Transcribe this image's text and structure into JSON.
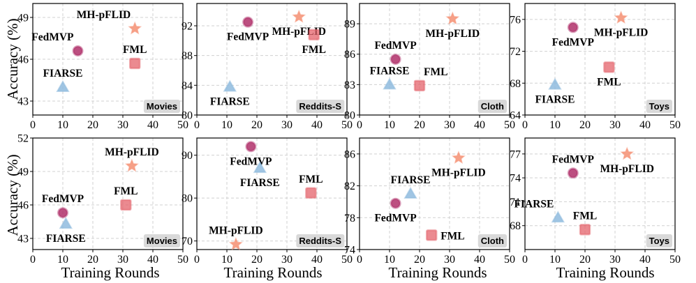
{
  "figure": {
    "ylabel": "Accuracy (%)",
    "xlabel": "Training Rounds"
  },
  "colors": {
    "FedMVP": "#b0306a",
    "MH-pFLID": "#f5967a",
    "FML": "#e4636b",
    "FIARSE": "#8fbbde",
    "dataset_box": "#d9d9d9"
  },
  "markers": {
    "FedMVP": "circle",
    "MH-pFLID": "star",
    "FML": "square",
    "FIARSE": "triangle"
  },
  "chart_data": [
    {
      "type": "scatter",
      "dataset": "Movies",
      "row": 0,
      "col": 0,
      "xlim": [
        0,
        50
      ],
      "ylim": [
        42,
        50
      ],
      "xticks": [
        "0",
        "10",
        "20",
        "30",
        "40",
        "50"
      ],
      "yticks": [
        {
          "v": 43,
          "t": "43"
        },
        {
          "v": 46,
          "t": "46"
        },
        {
          "v": 49,
          "t": "49"
        }
      ],
      "points": [
        {
          "name": "FedMVP",
          "x": 15,
          "y": 46.6,
          "label_pos": "above-left"
        },
        {
          "name": "MH-pFLID",
          "x": 34,
          "y": 48.2,
          "label_pos": "above-left"
        },
        {
          "name": "FML",
          "x": 34,
          "y": 45.7,
          "label_pos": "above"
        },
        {
          "name": "FIARSE",
          "x": 10,
          "y": 44.0,
          "label_pos": "above"
        }
      ]
    },
    {
      "type": "scatter",
      "dataset": "Reddits-S",
      "row": 0,
      "col": 1,
      "xlim": [
        0,
        50
      ],
      "ylim": [
        80,
        95
      ],
      "xticks": [
        "0",
        "10",
        "20",
        "30",
        "40",
        "50"
      ],
      "yticks": [
        {
          "v": 80,
          "t": "80"
        },
        {
          "v": 84,
          "t": "84"
        },
        {
          "v": 88,
          "t": "88"
        },
        {
          "v": 92,
          "t": "92"
        }
      ],
      "points": [
        {
          "name": "FedMVP",
          "x": 17,
          "y": 92.5,
          "label_pos": "below"
        },
        {
          "name": "MH-pFLID",
          "x": 34,
          "y": 93.2,
          "label_pos": "below"
        },
        {
          "name": "FML",
          "x": 39,
          "y": 90.8,
          "label_pos": "below"
        },
        {
          "name": "FIARSE",
          "x": 11,
          "y": 83.8,
          "label_pos": "below"
        }
      ]
    },
    {
      "type": "scatter",
      "dataset": "Cloth",
      "row": 0,
      "col": 2,
      "xlim": [
        0,
        50
      ],
      "ylim": [
        80,
        91
      ],
      "xticks": [
        "0",
        "10",
        "20",
        "30",
        "40",
        "50"
      ],
      "yticks": [
        {
          "v": 80,
          "t": "80"
        },
        {
          "v": 83,
          "t": "83"
        },
        {
          "v": 86,
          "t": "86"
        },
        {
          "v": 89,
          "t": "89"
        }
      ],
      "points": [
        {
          "name": "FedMVP",
          "x": 12,
          "y": 85.5,
          "label_pos": "above"
        },
        {
          "name": "MH-pFLID",
          "x": 31,
          "y": 89.5,
          "label_pos": "below"
        },
        {
          "name": "FML",
          "x": 20,
          "y": 82.9,
          "label_pos": "above-right"
        },
        {
          "name": "FIARSE",
          "x": 10,
          "y": 83.0,
          "label_pos": "above"
        }
      ]
    },
    {
      "type": "scatter",
      "dataset": "Toys",
      "row": 0,
      "col": 3,
      "xlim": [
        0,
        50
      ],
      "ylim": [
        64,
        78
      ],
      "xticks": [
        "0",
        "10",
        "20",
        "30",
        "40",
        "50"
      ],
      "yticks": [
        {
          "v": 64,
          "t": "64"
        },
        {
          "v": 68,
          "t": "68"
        },
        {
          "v": 72,
          "t": "72"
        },
        {
          "v": 76,
          "t": "76"
        }
      ],
      "points": [
        {
          "name": "FedMVP",
          "x": 16,
          "y": 75.0,
          "label_pos": "below"
        },
        {
          "name": "MH-pFLID",
          "x": 32,
          "y": 76.2,
          "label_pos": "below"
        },
        {
          "name": "FML",
          "x": 28,
          "y": 70.0,
          "label_pos": "below"
        },
        {
          "name": "FIARSE",
          "x": 10,
          "y": 67.8,
          "label_pos": "below"
        }
      ]
    },
    {
      "type": "scatter",
      "dataset": "Movies",
      "row": 1,
      "col": 0,
      "xlim": [
        0,
        50
      ],
      "ylim": [
        42,
        52
      ],
      "xticks": [
        "0",
        "10",
        "20",
        "30",
        "40",
        "50"
      ],
      "yticks": [
        {
          "v": 43,
          "t": "43"
        },
        {
          "v": 46,
          "t": "46"
        },
        {
          "v": 49,
          "t": "49"
        },
        {
          "v": 52,
          "t": "52"
        }
      ],
      "points": [
        {
          "name": "FedMVP",
          "x": 10,
          "y": 45.3,
          "label_pos": "above"
        },
        {
          "name": "MH-pFLID",
          "x": 33,
          "y": 49.5,
          "label_pos": "above"
        },
        {
          "name": "FML",
          "x": 31,
          "y": 46.0,
          "label_pos": "above"
        },
        {
          "name": "FIARSE",
          "x": 11,
          "y": 44.3,
          "label_pos": "below"
        }
      ]
    },
    {
      "type": "scatter",
      "dataset": "Reddits-S",
      "row": 1,
      "col": 1,
      "xlim": [
        0,
        50
      ],
      "ylim": [
        68,
        94
      ],
      "xticks": [
        "0",
        "10",
        "20",
        "30",
        "40",
        "50"
      ],
      "yticks": [
        {
          "v": 70,
          "t": "70"
        },
        {
          "v": 80,
          "t": "80"
        },
        {
          "v": 90,
          "t": "90"
        }
      ],
      "points": [
        {
          "name": "FedMVP",
          "x": 18,
          "y": 92.0,
          "label_pos": "below"
        },
        {
          "name": "MH-pFLID",
          "x": 13,
          "y": 69.2,
          "label_pos": "above"
        },
        {
          "name": "FML",
          "x": 38,
          "y": 81.2,
          "label_pos": "above"
        },
        {
          "name": "FIARSE",
          "x": 21,
          "y": 87.0,
          "label_pos": "below"
        }
      ]
    },
    {
      "type": "scatter",
      "dataset": "Cloth",
      "row": 1,
      "col": 2,
      "xlim": [
        0,
        50
      ],
      "ylim": [
        74,
        88
      ],
      "xticks": [
        "0",
        "10",
        "20",
        "30",
        "40",
        "50"
      ],
      "yticks": [
        {
          "v": 74,
          "t": "74"
        },
        {
          "v": 78,
          "t": "78"
        },
        {
          "v": 82,
          "t": "82"
        },
        {
          "v": 86,
          "t": "86"
        }
      ],
      "points": [
        {
          "name": "FedMVP",
          "x": 12,
          "y": 79.8,
          "label_pos": "below"
        },
        {
          "name": "MH-pFLID",
          "x": 33,
          "y": 85.5,
          "label_pos": "below"
        },
        {
          "name": "FML",
          "x": 24,
          "y": 75.8,
          "label_pos": "right"
        },
        {
          "name": "FIARSE",
          "x": 17,
          "y": 81.0,
          "label_pos": "above"
        }
      ]
    },
    {
      "type": "scatter",
      "dataset": "Toys",
      "row": 1,
      "col": 3,
      "xlim": [
        0,
        50
      ],
      "ylim": [
        65,
        79
      ],
      "xticks": [
        "0",
        "10",
        "20",
        "30",
        "40",
        "50"
      ],
      "yticks": [
        {
          "v": 68,
          "t": "68"
        },
        {
          "v": 71,
          "t": "71"
        },
        {
          "v": 74,
          "t": "74"
        },
        {
          "v": 77,
          "t": "77"
        }
      ],
      "points": [
        {
          "name": "FedMVP",
          "x": 16,
          "y": 74.6,
          "label_pos": "above"
        },
        {
          "name": "MH-pFLID",
          "x": 34,
          "y": 77.0,
          "label_pos": "below"
        },
        {
          "name": "FML",
          "x": 20,
          "y": 67.5,
          "label_pos": "above"
        },
        {
          "name": "FIARSE",
          "x": 11,
          "y": 69.0,
          "label_pos": "above-left"
        }
      ]
    }
  ]
}
